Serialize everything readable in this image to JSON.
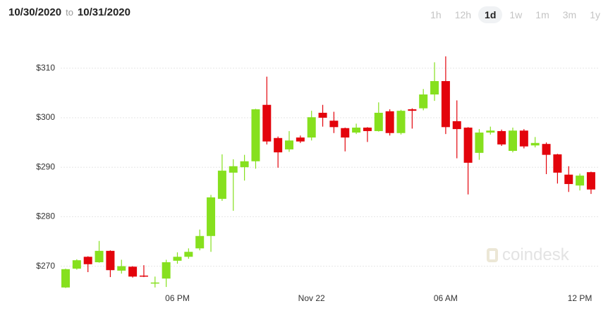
{
  "header": {
    "from": "10/30/2020",
    "to_word": "to",
    "to": "10/31/2020"
  },
  "timeframes": {
    "options": [
      "1h",
      "12h",
      "1d",
      "1w",
      "1m",
      "3m",
      "1y"
    ],
    "selected": 2
  },
  "watermark": "coindesk",
  "chart_data": {
    "type": "candlestick",
    "categories": [
      null,
      null,
      null,
      null,
      null,
      null,
      null,
      null,
      null,
      null,
      "06 PM",
      null,
      null,
      null,
      null,
      null,
      null,
      null,
      null,
      null,
      null,
      null,
      "Nov 22",
      null,
      null,
      null,
      null,
      null,
      null,
      null,
      null,
      null,
      null,
      null,
      "06 AM",
      null,
      null,
      null,
      null,
      null,
      null,
      null,
      null,
      null,
      null,
      null,
      "12 PM",
      null
    ],
    "open": [
      265.7,
      269.5,
      271.9,
      270.8,
      273.1,
      269.1,
      269.9,
      268.1,
      266.5,
      267.5,
      271.1,
      271.9,
      273.6,
      276.1,
      283.6,
      288.9,
      290.0,
      291.2,
      302.6,
      295.9,
      293.6,
      296.0,
      296.0,
      301.0,
      299.4,
      297.9,
      297.0,
      298.0,
      297.3,
      301.3,
      296.9,
      301.7,
      301.9,
      304.7,
      307.4,
      299.3,
      298.0,
      292.9,
      297.0,
      297.3,
      293.3,
      297.4,
      294.4,
      294.7,
      292.6,
      288.5,
      286.3,
      289.0
    ],
    "high": [
      269.5,
      271.4,
      272.0,
      275.1,
      273.2,
      271.3,
      270.0,
      270.2,
      267.9,
      271.3,
      272.8,
      273.6,
      277.4,
      284.4,
      292.6,
      291.6,
      292.5,
      301.8,
      308.3,
      296.2,
      297.3,
      296.4,
      301.4,
      302.6,
      301.2,
      298.0,
      298.8,
      298.1,
      303.1,
      301.7,
      301.6,
      301.9,
      305.8,
      311.2,
      312.4,
      303.5,
      298.1,
      297.7,
      298.2,
      297.6,
      298.0,
      297.7,
      296.1,
      295.0,
      292.7,
      290.2,
      288.7,
      289.1
    ],
    "low": [
      265.6,
      269.3,
      268.8,
      270.7,
      267.8,
      268.5,
      267.7,
      267.8,
      265.7,
      265.8,
      270.5,
      271.5,
      273.2,
      272.9,
      283.2,
      281.2,
      287.3,
      289.7,
      294.6,
      289.9,
      293.1,
      294.9,
      295.4,
      298.2,
      296.9,
      293.2,
      296.7,
      295.1,
      297.2,
      296.4,
      296.6,
      297.8,
      301.5,
      303.4,
      296.7,
      291.8,
      284.5,
      291.5,
      296.6,
      294.3,
      293.0,
      293.8,
      294.0,
      288.6,
      286.7,
      285.0,
      285.3,
      284.6
    ],
    "close": [
      269.4,
      271.2,
      270.4,
      273.1,
      269.2,
      270.0,
      267.9,
      267.9,
      266.7,
      270.8,
      271.9,
      272.9,
      276.1,
      283.9,
      289.3,
      290.2,
      291.2,
      301.7,
      295.2,
      293.0,
      295.4,
      295.2,
      300.1,
      300.0,
      298.1,
      296.0,
      298.0,
      297.3,
      301.0,
      296.9,
      301.4,
      301.4,
      304.7,
      307.4,
      298.1,
      297.7,
      290.9,
      297.0,
      297.4,
      294.6,
      297.4,
      294.2,
      294.9,
      292.5,
      288.9,
      286.6,
      288.3,
      285.5
    ],
    "up_color": "#86e01e",
    "down_color": "#e3040c",
    "ylim": [
      265,
      314
    ],
    "yticks": [
      {
        "value": 270,
        "label": "$270"
      },
      {
        "value": 280,
        "label": "$280"
      },
      {
        "value": 290,
        "label": "$290"
      },
      {
        "value": 300,
        "label": "$300"
      },
      {
        "value": 310,
        "label": "$310"
      }
    ],
    "grid": true
  }
}
